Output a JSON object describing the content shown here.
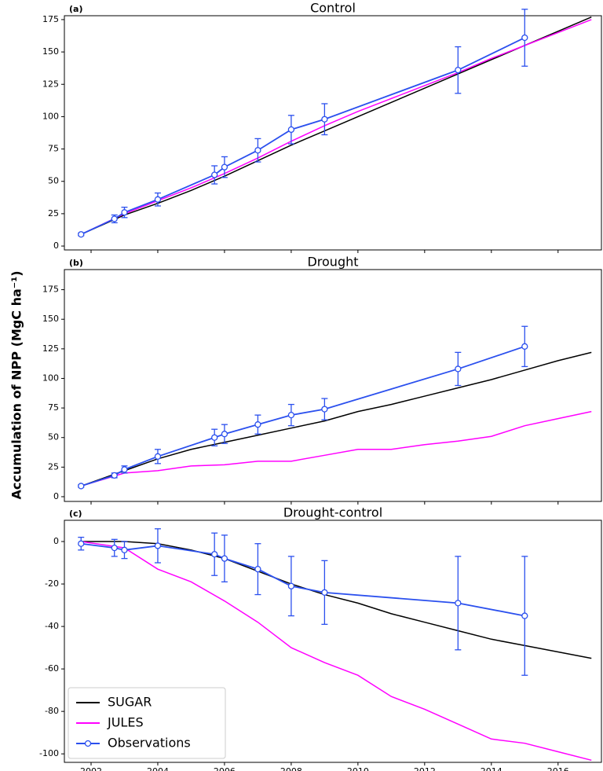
{
  "ylabel": "Accumulation of NPP (MgC ha⁻¹)",
  "chart_data": [
    {
      "type": "line",
      "panel": "(a)",
      "title": "Control",
      "xlim": [
        2001.2,
        2017.3
      ],
      "xticks": [
        2002,
        2004,
        2006,
        2008,
        2010,
        2012,
        2014,
        2016
      ],
      "show_xticklabels": false,
      "ylim": [
        -3,
        178
      ],
      "yticks": [
        0,
        25,
        50,
        75,
        100,
        125,
        150,
        175
      ],
      "legend": false,
      "series": [
        {
          "color": "#000000",
          "x": [
            2001.7,
            2003,
            2004,
            2005,
            2006,
            2007,
            2008,
            2009,
            2010,
            2011,
            2012,
            2013,
            2014,
            2015,
            2016,
            2017
          ],
          "values": [
            9,
            24,
            33,
            43,
            54,
            66,
            78,
            89,
            100,
            111,
            122,
            133,
            144,
            155,
            166,
            177
          ]
        },
        {
          "color": "#ff00ff",
          "x": [
            2001.7,
            2003,
            2004,
            2005,
            2006,
            2007,
            2008,
            2009,
            2010,
            2011,
            2012,
            2013,
            2014,
            2015,
            2016,
            2017
          ],
          "values": [
            9,
            25,
            35,
            45,
            56,
            68,
            81,
            93,
            104,
            114,
            124,
            134,
            145,
            155,
            165,
            175
          ]
        },
        {
          "color": "#2b50ee",
          "markers": true,
          "x": [
            2001.7,
            2002.7,
            2003,
            2004,
            2005.7,
            2006,
            2007,
            2008,
            2009,
            2013,
            2015
          ],
          "values": [
            9,
            21,
            26,
            36,
            55,
            61,
            74,
            90,
            98,
            136,
            161
          ],
          "errors": [
            1,
            3,
            4,
            5,
            7,
            8,
            9,
            11,
            12,
            18,
            22
          ]
        }
      ]
    },
    {
      "type": "line",
      "panel": "(b)",
      "title": "Drought",
      "xlim": [
        2001.2,
        2017.3
      ],
      "xticks": [
        2002,
        2004,
        2006,
        2008,
        2010,
        2012,
        2014,
        2016
      ],
      "show_xticklabels": false,
      "ylim": [
        -4,
        192
      ],
      "yticks": [
        0,
        25,
        50,
        75,
        100,
        125,
        150,
        175
      ],
      "legend": false,
      "series": [
        {
          "color": "#000000",
          "x": [
            2001.7,
            2003,
            2004,
            2005,
            2006,
            2007,
            2008,
            2009,
            2010,
            2011,
            2012,
            2013,
            2014,
            2015,
            2016,
            2017
          ],
          "values": [
            9,
            22,
            32,
            40,
            46,
            52,
            58,
            64,
            72,
            78,
            85,
            92,
            99,
            107,
            115,
            122
          ]
        },
        {
          "color": "#ff00ff",
          "x": [
            2001.7,
            2003,
            2004,
            2005,
            2006,
            2007,
            2008,
            2009,
            2010,
            2011,
            2012,
            2013,
            2014,
            2015,
            2016,
            2017
          ],
          "values": [
            9,
            20,
            22,
            26,
            27,
            30,
            30,
            35,
            40,
            40,
            44,
            47,
            51,
            60,
            66,
            72
          ]
        },
        {
          "color": "#2b50ee",
          "markers": true,
          "x": [
            2001.7,
            2002.7,
            2003,
            2004,
            2005.7,
            2006,
            2007,
            2008,
            2009,
            2013,
            2015
          ],
          "values": [
            9,
            18,
            23,
            34,
            50,
            53,
            61,
            69,
            74,
            108,
            127
          ],
          "errors": [
            1,
            2,
            3,
            6,
            7,
            8,
            8,
            9,
            9,
            14,
            17
          ]
        }
      ]
    },
    {
      "type": "line",
      "panel": "(c)",
      "title": "Drought-control",
      "xlim": [
        2001.2,
        2017.3
      ],
      "xticks": [
        2002,
        2004,
        2006,
        2008,
        2010,
        2012,
        2014,
        2016
      ],
      "show_xticklabels": true,
      "ylim": [
        -104,
        10
      ],
      "yticks": [
        -100,
        -80,
        -60,
        -40,
        -20,
        0
      ],
      "legend": "lower left",
      "series": [
        {
          "name": "SUGAR",
          "color": "#000000",
          "x": [
            2001.7,
            2003,
            2004,
            2005,
            2006,
            2007,
            2008,
            2009,
            2010,
            2011,
            2012,
            2013,
            2014,
            2015,
            2016,
            2017
          ],
          "values": [
            0,
            0,
            -1,
            -4,
            -8,
            -14,
            -20,
            -25,
            -29,
            -34,
            -38,
            -42,
            -46,
            -49,
            -52,
            -55
          ]
        },
        {
          "name": "JULES",
          "color": "#ff00ff",
          "x": [
            2001.7,
            2003,
            2004,
            2005,
            2006,
            2007,
            2008,
            2009,
            2010,
            2011,
            2012,
            2013,
            2014,
            2015,
            2016,
            2017
          ],
          "values": [
            0,
            -3,
            -13,
            -19,
            -28,
            -38,
            -50,
            -57,
            -63,
            -73,
            -79,
            -86,
            -93,
            -95,
            -99,
            -103
          ]
        },
        {
          "name": "Observations",
          "color": "#2b50ee",
          "markers": true,
          "x": [
            2001.7,
            2002.7,
            2003,
            2004,
            2005.7,
            2006,
            2007,
            2008,
            2009,
            2013,
            2015
          ],
          "values": [
            -1,
            -3,
            -4,
            -2,
            -6,
            -8,
            -13,
            -21,
            -24,
            -29,
            -35
          ],
          "errors": [
            3,
            4,
            4,
            8,
            10,
            11,
            12,
            14,
            15,
            22,
            28
          ]
        }
      ]
    }
  ]
}
